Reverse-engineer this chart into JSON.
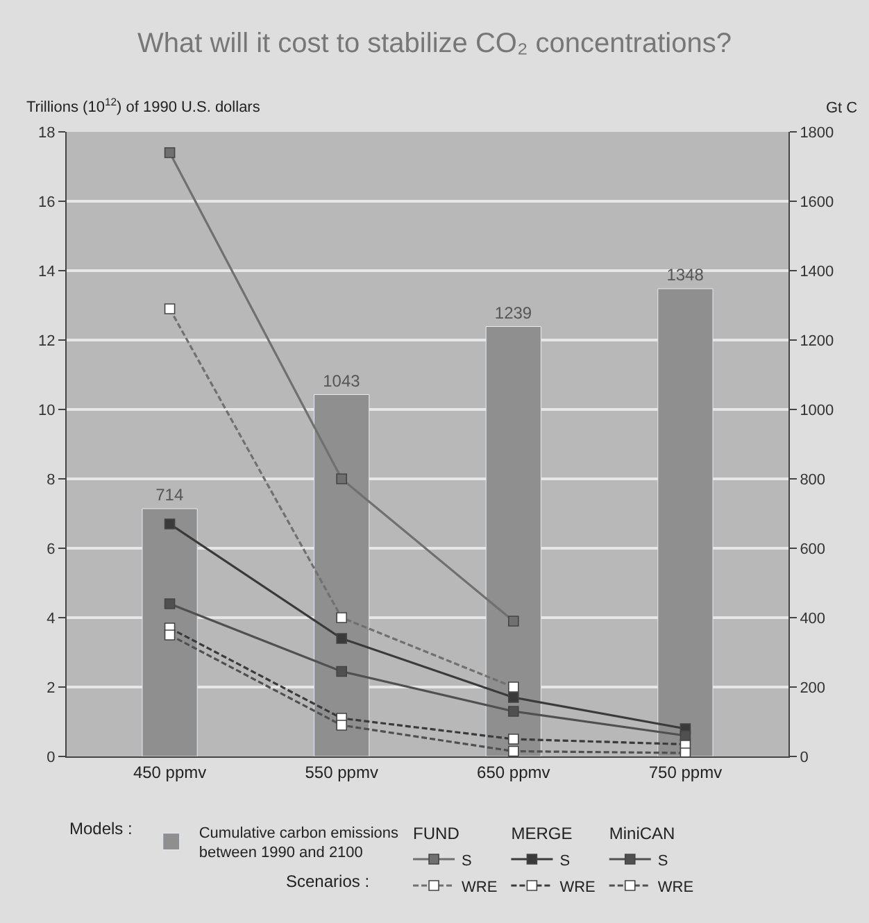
{
  "chart_data": {
    "type": "line",
    "title": "What will it cost to stabilize CO₂ concentrations?",
    "ylabel": "Trillions (10$^{12}$) of 1990 U.S. dollars",
    "y2label": "Gt C",
    "categories": [
      "450 ppmv",
      "550 ppmv",
      "650 ppmv",
      "750 ppmv"
    ],
    "ylim": [
      0,
      18
    ],
    "yticks": [
      0,
      2,
      4,
      6,
      8,
      10,
      12,
      14,
      16,
      18
    ],
    "y2lim": [
      0,
      1800
    ],
    "y2ticks": [
      0,
      200,
      400,
      600,
      800,
      1000,
      1200,
      1400,
      1600,
      1800
    ],
    "grid": "y",
    "legend": "bottom",
    "legend_title": "Models :",
    "marker": "square",
    "annotations": [
      "Scenarios :",
      "FUND",
      "MERGE",
      "MiniCAN"
    ],
    "series": [
      {
        "type": "bar",
        "axis": "y2",
        "name": "Cumulative carbon emissions\nbetween 1990 and 2100",
        "color": "#8f8f8f",
        "values": [
          714,
          1043,
          1239,
          1348
        ],
        "value_labels": [
          "714",
          "1043",
          "1239",
          "1348"
        ]
      },
      {
        "name": "S",
        "color": "#707070",
        "line_style": "solid",
        "values": [
          17.4,
          8.0,
          3.9,
          null
        ]
      },
      {
        "name": "WRE",
        "color": "#707070",
        "line_style": "dashed",
        "values": [
          12.9,
          4.0,
          2.0,
          null
        ]
      },
      {
        "name": "S",
        "color": "#3a3a3a",
        "line_style": "solid",
        "values": [
          6.7,
          3.4,
          1.7,
          0.8
        ]
      },
      {
        "name": "WRE",
        "color": "#3a3a3a",
        "line_style": "dashed",
        "values": [
          3.7,
          1.1,
          0.5,
          0.35
        ]
      },
      {
        "name": "S",
        "color": "#505050",
        "line_style": "solid",
        "values": [
          4.4,
          2.45,
          1.3,
          0.6
        ]
      },
      {
        "name": "WRE",
        "color": "#505050",
        "line_style": "dashed",
        "values": [
          3.5,
          0.9,
          0.15,
          0.1
        ]
      }
    ]
  }
}
